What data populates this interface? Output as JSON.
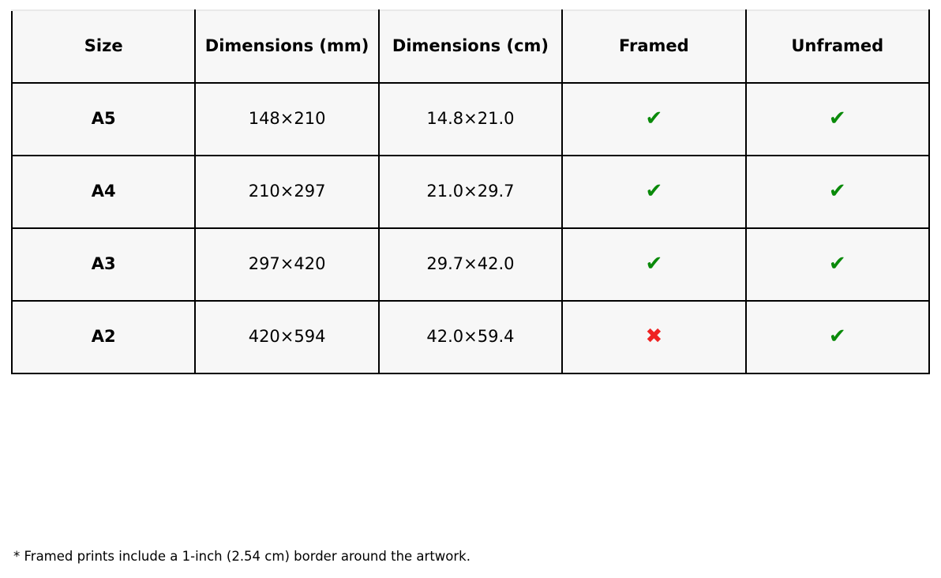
{
  "table": {
    "headers": [
      "Size",
      "Dimensions (mm)",
      "Dimensions (cm)",
      "Framed",
      "Unframed"
    ],
    "rows": [
      {
        "size": "A5",
        "dimensions_mm": "148×210",
        "dimensions_cm": "14.8×21.0",
        "framed": "✔",
        "unframed": "✔"
      },
      {
        "size": "A4",
        "dimensions_mm": "210×297",
        "dimensions_cm": "21.0×29.7",
        "framed": "✔",
        "unframed": "✔"
      },
      {
        "size": "A3",
        "dimensions_mm": "297×420",
        "dimensions_cm": "29.7×42.0",
        "framed": "✔",
        "unframed": "✔"
      },
      {
        "size": "A2",
        "dimensions_mm": "420×594",
        "dimensions_cm": "42.0×59.4",
        "framed": "✖",
        "unframed": "✔"
      }
    ]
  },
  "icons": {
    "check": "✔",
    "cross": "✖"
  },
  "colors": {
    "available_green": "#0a8a0a",
    "unavailable_red": "#ef2222",
    "cell_background": "#f7f7f7",
    "border_black": "#000000"
  },
  "footnote": "* Framed prints include a 1-inch (2.54 cm) border around the artwork.",
  "chart_data": {
    "type": "table",
    "columns": [
      "Size",
      "Dimensions (mm)",
      "Dimensions (cm)",
      "Framed",
      "Unframed"
    ],
    "rows": [
      [
        "A5",
        "148×210",
        "14.8×21.0",
        "available",
        "available"
      ],
      [
        "A4",
        "210×297",
        "21.0×29.7",
        "available",
        "available"
      ],
      [
        "A3",
        "297×420",
        "29.7×42.0",
        "available",
        "available"
      ],
      [
        "A2",
        "420×594",
        "42.0×59.4",
        "unavailable",
        "available"
      ]
    ]
  }
}
